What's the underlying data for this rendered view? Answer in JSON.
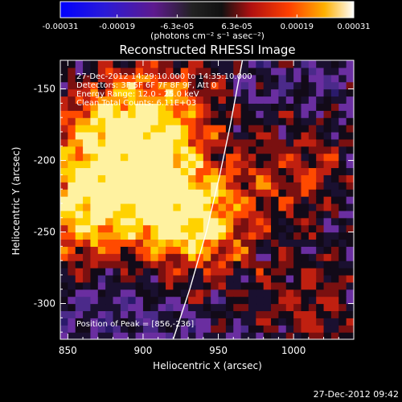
{
  "chart_data": {
    "type": "heatmap",
    "title": "Reconstructed RHESSI Image",
    "xlabel": "Heliocentric X (arcsec)",
    "ylabel": "Heliocentric Y (arcsec)",
    "xlim": [
      845,
      1040
    ],
    "ylim": [
      -325,
      -130
    ],
    "x_ticks": [
      850,
      900,
      950,
      1000
    ],
    "y_ticks": [
      -150,
      -200,
      -250,
      -300
    ],
    "colorbar": {
      "range": [
        -0.00031,
        0.00031
      ],
      "tick_values": [
        -0.00031,
        -0.00019,
        -6.3e-05,
        6.3e-05,
        0.00019,
        0.00031
      ],
      "tick_labels": [
        "-0.00031",
        "-0.00019",
        "-6.3e-05",
        "6.3e-05",
        "0.00019",
        "0.00031"
      ],
      "unit_text": "(photons cm⁻² s⁻¹ asec⁻²)"
    },
    "annotations": {
      "time": "27-Dec-2012 14:29:10.000 to 14:35:10.000",
      "detectors": "Detectors: 3F 5F 6F 7F 8F 9F, Att 0",
      "energy": "Energy Range: 12.0 - 25.0 keV",
      "clean": "Clean     Total Counts: 6.11E+03",
      "peak": "Position of Peak = [856,-236]"
    },
    "limb_curve": [
      [
        920,
        -325
      ],
      [
        931,
        -290
      ],
      [
        942,
        -250
      ],
      [
        951,
        -210
      ],
      [
        958,
        -175
      ],
      [
        966,
        -130
      ]
    ],
    "bright_sources": [
      {
        "x": 935,
        "y": -245,
        "strength": 1.0
      },
      {
        "x": 856,
        "y": -236,
        "strength": 1.0
      },
      {
        "x": 905,
        "y": -210,
        "strength": 0.85
      },
      {
        "x": 875,
        "y": -175,
        "strength": 0.8
      },
      {
        "x": 920,
        "y": -155,
        "strength": 0.6
      },
      {
        "x": 1005,
        "y": -205,
        "strength": 0.55
      },
      {
        "x": 1010,
        "y": -300,
        "strength": 0.5
      }
    ]
  },
  "footer": {
    "timestamp": "27-Dec-2012 09:42"
  }
}
